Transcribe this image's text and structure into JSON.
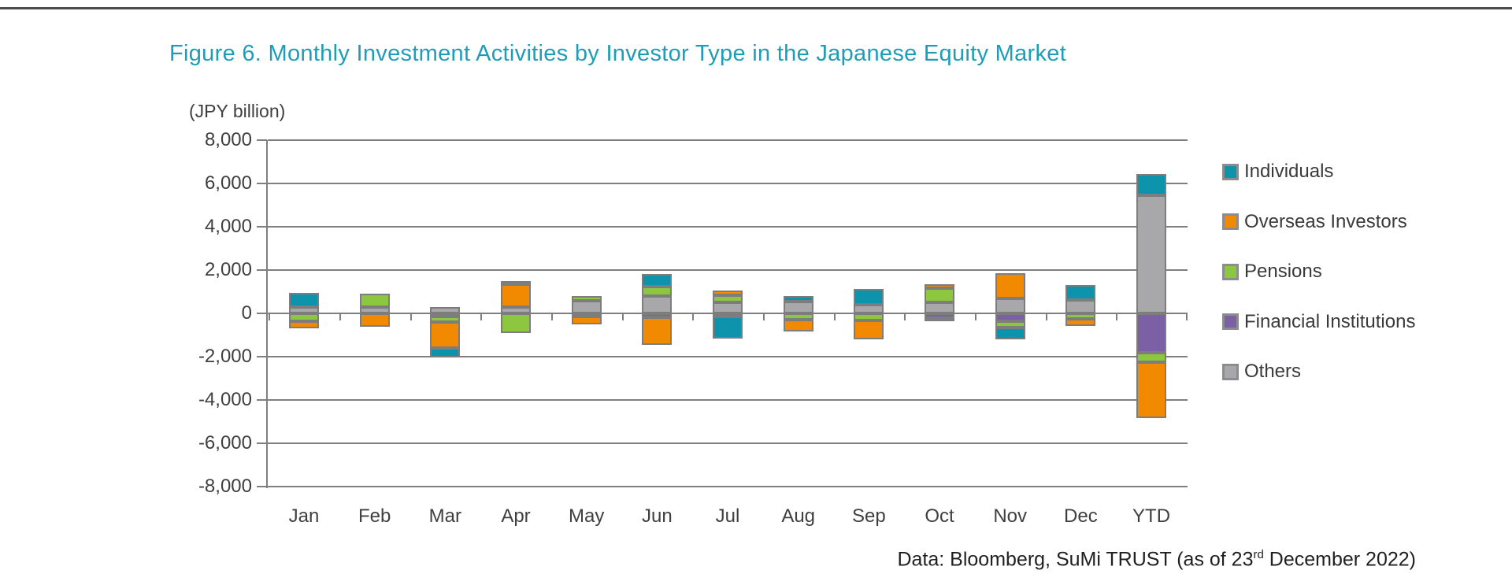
{
  "page": {
    "title": "Figure 6. Monthly Investment Activities by Investor Type in the Japanese Equity Market",
    "unit_label": "(JPY billion)",
    "source_note": {
      "prefix": "Data: Bloomberg, SuMi TRUST (as of 23",
      "superscript": "rd",
      "suffix": " December 2022)"
    }
  },
  "colors": {
    "title_teal": "#1E9DB8",
    "axis_text": "#3F3F3F",
    "gridline": "#7F7F7F",
    "segment_border": "#7D7D7D",
    "individuals": "#0D94AC",
    "overseas_investors": "#F18A00",
    "pensions": "#8DC63F",
    "financial_institutions": "#7C60A5",
    "others": "#A8A8AB"
  },
  "chart_data": {
    "type": "bar",
    "stacked": true,
    "title": "Figure 6. Monthly Investment Activities by Investor Type in the Japanese Equity Market",
    "unit": "JPY billion",
    "categories": [
      "Jan",
      "Feb",
      "Mar",
      "Apr",
      "May",
      "Jun",
      "Jul",
      "Aug",
      "Sep",
      "Oct",
      "Nov",
      "Dec",
      "YTD"
    ],
    "series": [
      {
        "name": "Individuals",
        "color": "#0D94AC",
        "values": [
          650,
          0,
          -430,
          150,
          0,
          600,
          -1030,
          240,
          750,
          -160,
          -550,
          670,
          970
        ]
      },
      {
        "name": "Overseas Investors",
        "color": "#F18A00",
        "values": [
          -350,
          -620,
          -1200,
          1050,
          -350,
          -1270,
          210,
          -550,
          -850,
          150,
          1150,
          -360,
          -2610
        ]
      },
      {
        "name": "Pensions",
        "color": "#8DC63F",
        "values": [
          -350,
          600,
          -250,
          -900,
          200,
          430,
          340,
          -300,
          -340,
          670,
          -300,
          -240,
          -420
        ]
      },
      {
        "name": "Financial Institutions",
        "color": "#7C60A5",
        "values": [
          0,
          0,
          -150,
          0,
          -150,
          -180,
          -100,
          0,
          0,
          -220,
          -360,
          0,
          -1820
        ]
      },
      {
        "name": "Others",
        "color": "#A8A8AB",
        "values": [
          300,
          300,
          300,
          280,
          600,
          790,
          510,
          550,
          390,
          510,
          700,
          630,
          5460
        ]
      }
    ],
    "stack_order_from_zero": [
      "Others",
      "Financial Institutions",
      "Pensions",
      "Overseas Investors",
      "Individuals"
    ],
    "ylim": [
      -8000,
      8000
    ],
    "y_ticks": [
      8000,
      6000,
      4000,
      2000,
      0,
      -2000,
      -4000,
      -6000,
      -8000
    ],
    "y_tick_labels": [
      "8,000",
      "6,000",
      "4,000",
      "2,000",
      "0",
      "-2,000",
      "-4,000",
      "-6,000",
      "-8,000"
    ],
    "grid": true,
    "legend_position": "right",
    "ylabel": "(JPY billion)"
  }
}
